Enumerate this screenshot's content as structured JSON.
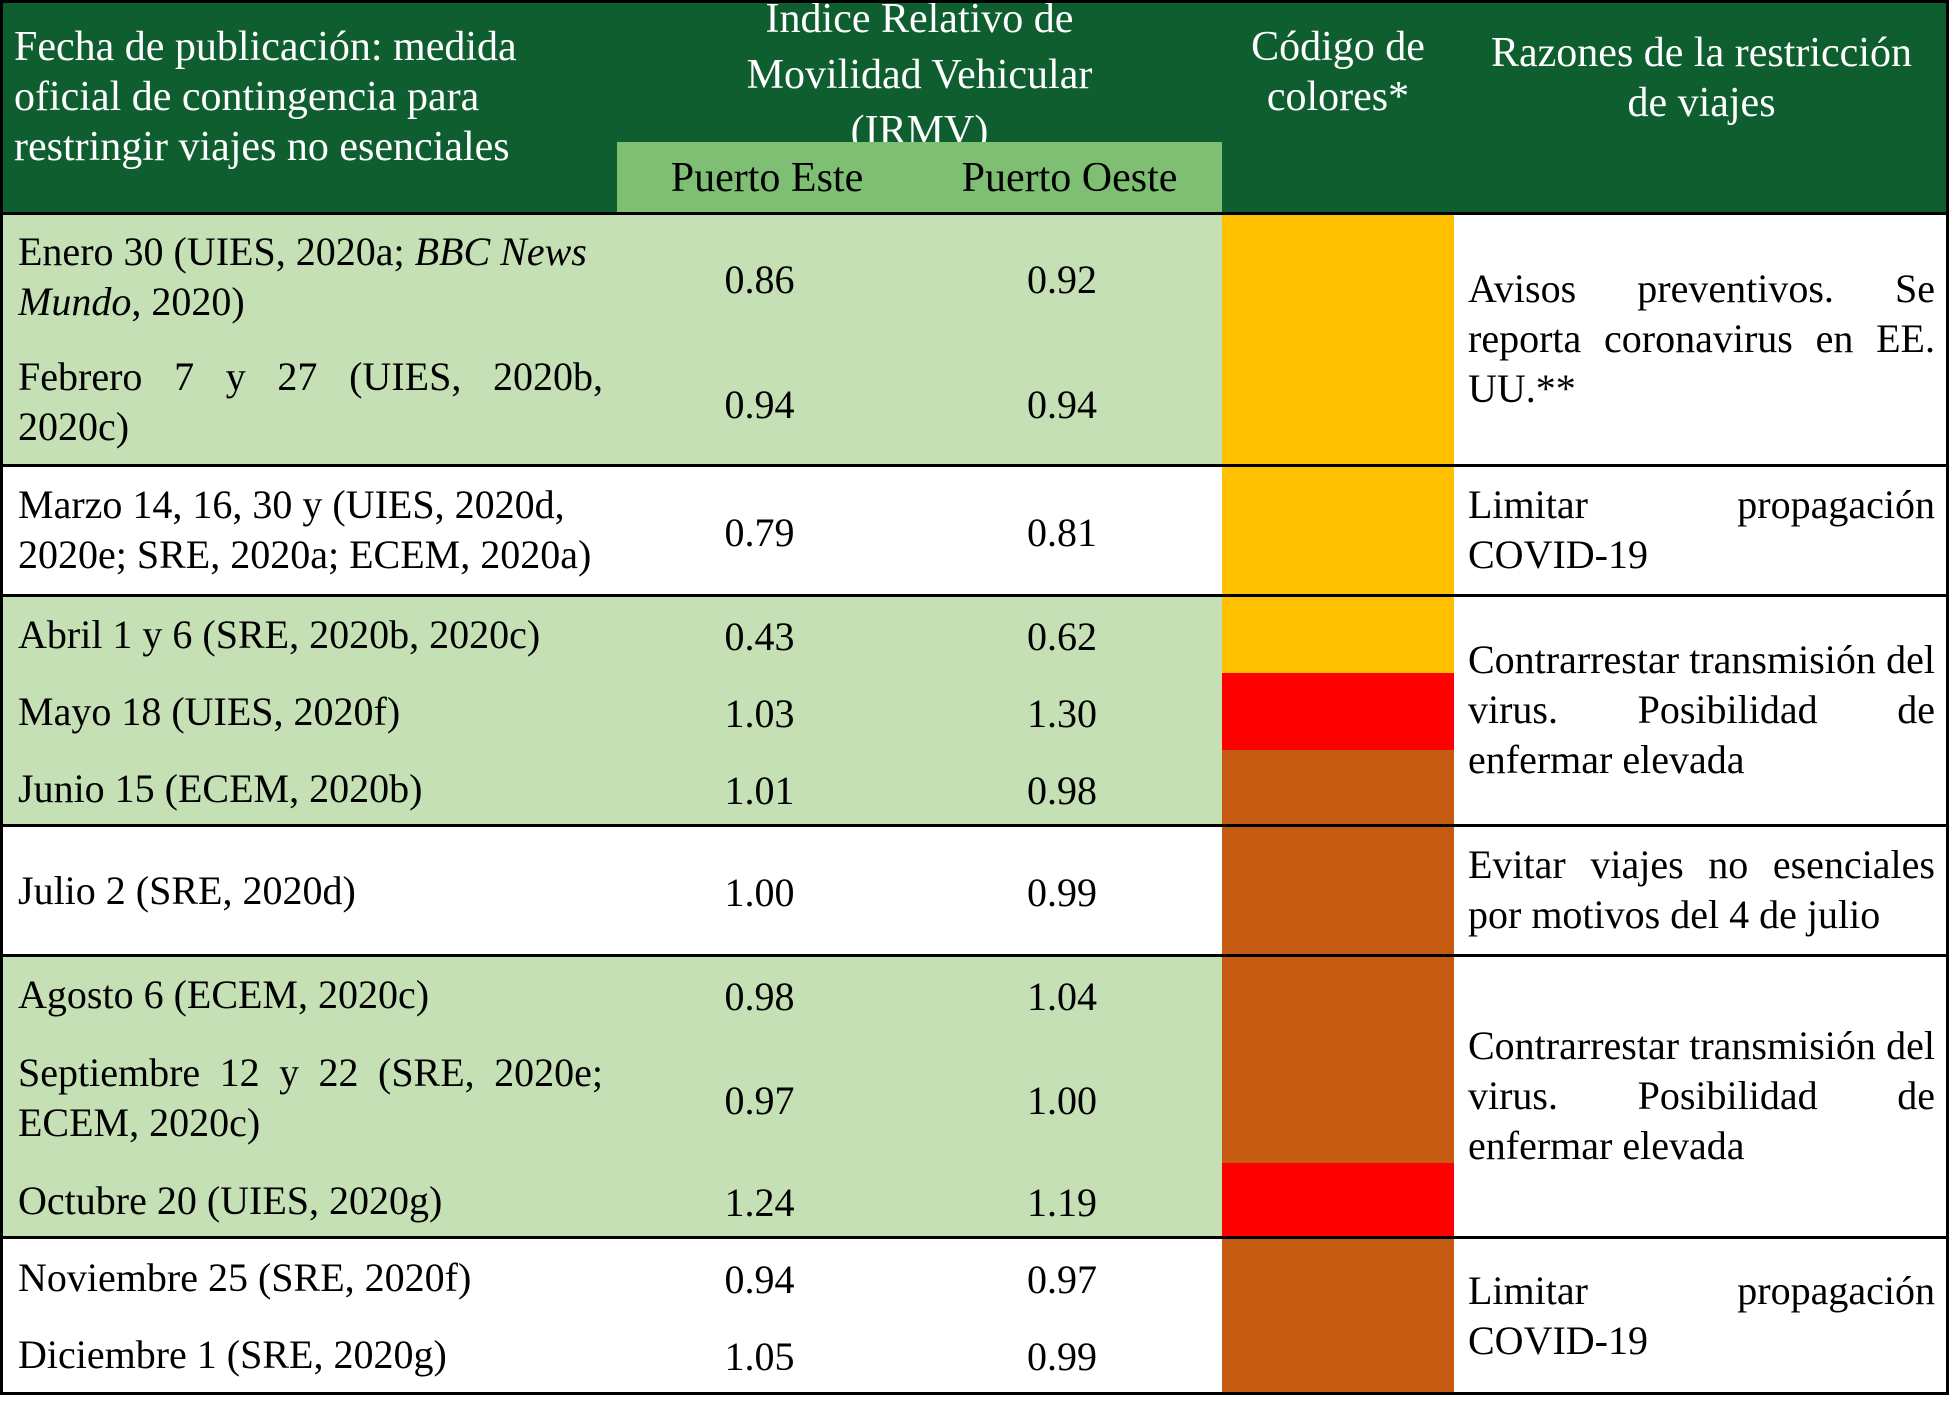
{
  "header": {
    "col_date": "Fecha de publicación: medida oficial de contingencia para restringir viajes no esenciales",
    "col_irmv": "Índice Relativo de Movilidad Vehicular (IRMV)",
    "col_este": "Puerto Este",
    "col_oeste": "Puerto Oeste",
    "col_color": "Código de colores*",
    "col_reason": "Razones de la restricción de viajes"
  },
  "colors": {
    "header_dark_green": "#0e5e30",
    "subheader_green": "#7fbf73",
    "row_light_green": "#c4e0b4",
    "amber": "#ffc000",
    "red": "#ff0000",
    "brown_orange": "#c55a11"
  },
  "rows": [
    {
      "date_pre": "Enero 30 (UIES, 2020a; ",
      "date_italic": "BBC News Mundo",
      "date_post": ", 2020)",
      "este": "0.86",
      "oeste": "0.92",
      "color": "#ffc000"
    },
    {
      "date": "Febrero 7 y 27 (UIES, 2020b, 2020c)",
      "este": "0.94",
      "oeste": "0.94",
      "color": "#ffc000"
    },
    {
      "date": "Marzo 14, 16, 30 y (UIES, 2020d, 2020e; SRE, 2020a; ECEM, 2020a)",
      "este": "0.79",
      "oeste": "0.81",
      "color": "#ffc000"
    },
    {
      "date": "Abril 1 y 6 (SRE, 2020b, 2020c)",
      "este": "0.43",
      "oeste": "0.62",
      "color": "#ffc000"
    },
    {
      "date": "Mayo 18 (UIES, 2020f)",
      "este": "1.03",
      "oeste": "1.30",
      "color": "#ff0000"
    },
    {
      "date": "Junio 15 (ECEM, 2020b)",
      "este": "1.01",
      "oeste": "0.98",
      "color": "#c55a11"
    },
    {
      "date": "Julio 2 (SRE, 2020d)",
      "este": "1.00",
      "oeste": "0.99",
      "color": "#c55a11"
    },
    {
      "date": "Agosto 6 (ECEM, 2020c)",
      "este": "0.98",
      "oeste": "1.04",
      "color": "#c55a11"
    },
    {
      "date": "Septiembre 12 y 22 (SRE, 2020e; ECEM, 2020c)",
      "este": "0.97",
      "oeste": "1.00",
      "color": "#c55a11"
    },
    {
      "date": "Octubre 20 (UIES, 2020g)",
      "este": "1.24",
      "oeste": "1.19",
      "color": "#ff0000"
    },
    {
      "date": "Noviembre 25 (SRE, 2020f)",
      "este": "0.94",
      "oeste": "0.97",
      "color": "#c55a11"
    },
    {
      "date": "Diciembre 1 (SRE, 2020g)",
      "este": "1.05",
      "oeste": "0.99",
      "color": "#c55a11"
    }
  ],
  "reasons": [
    {
      "text": "Avisos preventivos. Se reporta coronavirus en EE. UU.**"
    },
    {
      "text": "Limitar propagación COVID-19"
    },
    {
      "text": "Contrarrestar transmisión del virus. Posibilidad de enfermar elevada"
    },
    {
      "text": "Evitar viajes no esenciales por motivos del 4 de julio"
    },
    {
      "text": "Contrarrestar transmisión del virus. Posibilidad de enfermar elevada"
    },
    {
      "text": "Limitar propagación COVID-19"
    }
  ]
}
